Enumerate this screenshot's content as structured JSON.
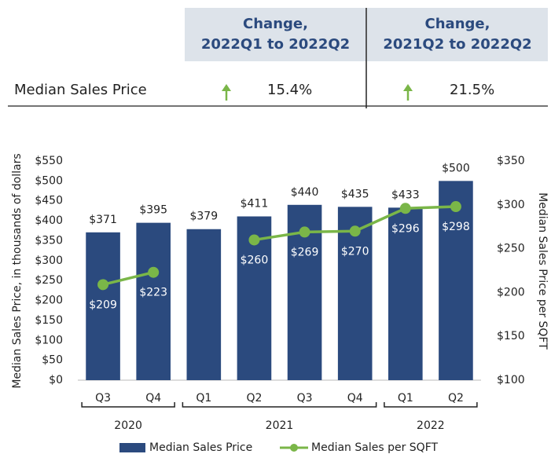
{
  "table": {
    "columns": [
      "Change,\n2022Q1 to 2022Q2",
      "Change,\n2021Q2 to 2022Q2"
    ],
    "rows": [
      [
        "Median Sales Price",
        "15.4%",
        "21.5%"
      ]
    ]
  },
  "chart_data": {
    "type": "bar",
    "categories": [
      "Q3",
      "Q4",
      "Q1",
      "Q2",
      "Q3",
      "Q4",
      "Q1",
      "Q2"
    ],
    "x_groups": [
      {
        "label": "2020",
        "categories": [
          "Q3",
          "Q4"
        ]
      },
      {
        "label": "2021",
        "categories": [
          "Q1",
          "Q2",
          "Q3",
          "Q4"
        ]
      },
      {
        "label": "2022",
        "categories": [
          "Q1",
          "Q2"
        ]
      }
    ],
    "y_label": "Median Sales Price, in thousands of dollars",
    "y2_label": "Median Sales Price per SQFT",
    "ylim": [
      0,
      550
    ],
    "yticks": [
      {
        "value": 0,
        "label": "$0"
      },
      {
        "value": 50,
        "label": "$50"
      },
      {
        "value": 100,
        "label": "$100"
      },
      {
        "value": 150,
        "label": "$150"
      },
      {
        "value": 200,
        "label": "$200"
      },
      {
        "value": 250,
        "label": "$250"
      },
      {
        "value": 300,
        "label": "$300"
      },
      {
        "value": 350,
        "label": "$350"
      },
      {
        "value": 400,
        "label": "$400"
      },
      {
        "value": 450,
        "label": "$450"
      },
      {
        "value": 500,
        "label": "$500"
      },
      {
        "value": 550,
        "label": "$550"
      }
    ],
    "y2lim": [
      100,
      350
    ],
    "y2ticks": [
      {
        "value": 100,
        "label": "$100"
      },
      {
        "value": 150,
        "label": "$150"
      },
      {
        "value": 200,
        "label": "$200"
      },
      {
        "value": 250,
        "label": "$250"
      },
      {
        "value": 300,
        "label": "$300"
      },
      {
        "value": 350,
        "label": "$350"
      }
    ],
    "series": [
      {
        "name": "Median Sales Price",
        "type": "bar",
        "color": "#2b4a7e",
        "values": [
          371,
          395,
          379,
          411,
          440,
          435,
          433,
          500
        ],
        "value_labels": [
          "$371",
          "$395",
          "$379",
          "$411",
          "$440",
          "$435",
          "$433",
          "$500"
        ]
      },
      {
        "name": "Median Sales per SQFT",
        "type": "line",
        "axis": "y2",
        "color": "#7ab648",
        "values": [
          209,
          223,
          null,
          260,
          269,
          270,
          296,
          298
        ],
        "value_labels": [
          "$209",
          "$223",
          null,
          "$260",
          "$269",
          "$270",
          "$296",
          "$298"
        ]
      }
    ]
  }
}
